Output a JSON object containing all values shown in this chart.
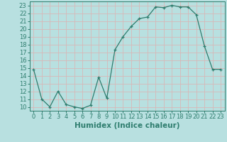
{
  "x": [
    0,
    1,
    2,
    3,
    4,
    5,
    6,
    7,
    8,
    9,
    10,
    11,
    12,
    13,
    14,
    15,
    16,
    17,
    18,
    19,
    20,
    21,
    22,
    23
  ],
  "y": [
    14.8,
    11.0,
    10.0,
    12.0,
    10.3,
    10.0,
    9.8,
    10.2,
    13.8,
    11.1,
    17.3,
    19.0,
    20.3,
    21.3,
    21.5,
    22.8,
    22.7,
    23.0,
    22.8,
    22.8,
    21.8,
    17.8,
    14.8,
    14.8
  ],
  "line_color": "#2e7d6e",
  "marker": "+",
  "bg_color": "#b8e0e0",
  "grid_color": "#d8b8b8",
  "xlabel": "Humidex (Indice chaleur)",
  "xlim": [
    -0.5,
    23.5
  ],
  "ylim": [
    9.5,
    23.5
  ],
  "yticks": [
    10,
    11,
    12,
    13,
    14,
    15,
    16,
    17,
    18,
    19,
    20,
    21,
    22,
    23
  ],
  "xticks": [
    0,
    1,
    2,
    3,
    4,
    5,
    6,
    7,
    8,
    9,
    10,
    11,
    12,
    13,
    14,
    15,
    16,
    17,
    18,
    19,
    20,
    21,
    22,
    23
  ],
  "tick_color": "#2e7d6e",
  "label_fontsize": 6,
  "xlabel_fontsize": 7.5
}
